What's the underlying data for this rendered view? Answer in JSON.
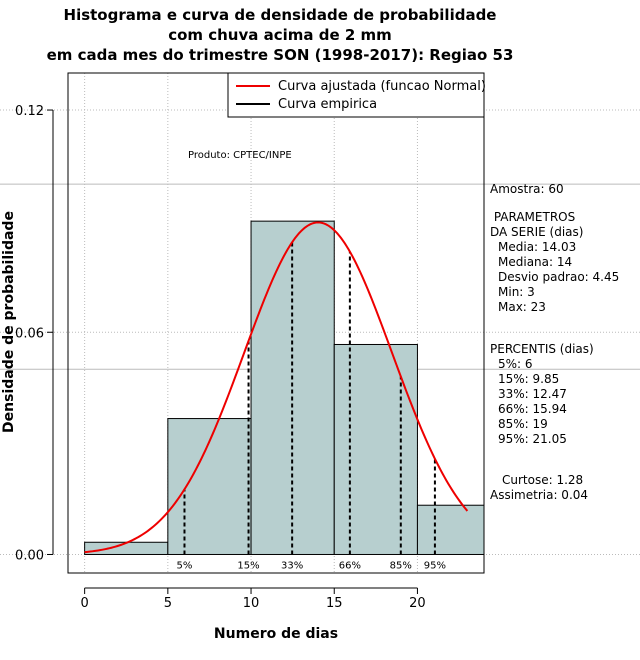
{
  "chart_data": {
    "type": "histogram",
    "title_lines": [
      "Histograma e curva de densidade de probabilidade",
      "com chuva acima de 2 mm",
      "em cada mes do trimestre SON (1998-2017): Regiao 53"
    ],
    "xlabel": "Numero de dias",
    "ylabel": "Densidade de probabilidade",
    "xlim": [
      -1,
      24
    ],
    "ylim": [
      -0.005,
      0.13
    ],
    "x_ticks": [
      "0",
      "5",
      "10",
      "15",
      "20"
    ],
    "y_ticks": [
      "0.00",
      "0.06",
      "0.12"
    ],
    "bins": [
      {
        "start": 0,
        "end": 5,
        "density": 0.0033
      },
      {
        "start": 5,
        "end": 10,
        "density": 0.0367
      },
      {
        "start": 10,
        "end": 15,
        "density": 0.09
      },
      {
        "start": 15,
        "end": 20,
        "density": 0.0567
      },
      {
        "start": 20,
        "end": 24,
        "density": 0.0133
      }
    ],
    "normal_fit": {
      "mean": 14.03,
      "sd": 4.45,
      "range": [
        0,
        23
      ]
    },
    "percentiles": [
      {
        "label": "5%",
        "value": 6
      },
      {
        "label": "15%",
        "value": 9.85
      },
      {
        "label": "33%",
        "value": 12.47
      },
      {
        "label": "66%",
        "value": 15.94
      },
      {
        "label": "85%",
        "value": 19
      },
      {
        "label": "95%",
        "value": 21.05
      }
    ],
    "legend": {
      "fitted": "Curva ajustada (funcao Normal)",
      "empirical": "Curva empirica"
    },
    "product_label": "Produto: CPTEC/INPE",
    "colors": {
      "bar_fill": "#b7cfcf",
      "fit_line": "#ee0000",
      "grid": "#bbbbbb"
    }
  },
  "side_panel": {
    "sample": "Amostra: 60",
    "params_header_1": " PARAMETROS",
    "params_header_2": "DA SERIE (dias)",
    "params": [
      "Media: 14.03",
      "Mediana: 14",
      "Desvio padrao: 4.45",
      "Min: 3",
      "Max: 23"
    ],
    "percentis_header": "PERCENTIS (dias)",
    "percentis": [
      "5%: 6",
      "15%: 9.85",
      "33%: 12.47",
      "66%: 15.94",
      "85%: 19",
      "95%: 21.05"
    ],
    "curtose": "Curtose: 1.28",
    "assimetria": "Assimetria: 0.04"
  }
}
